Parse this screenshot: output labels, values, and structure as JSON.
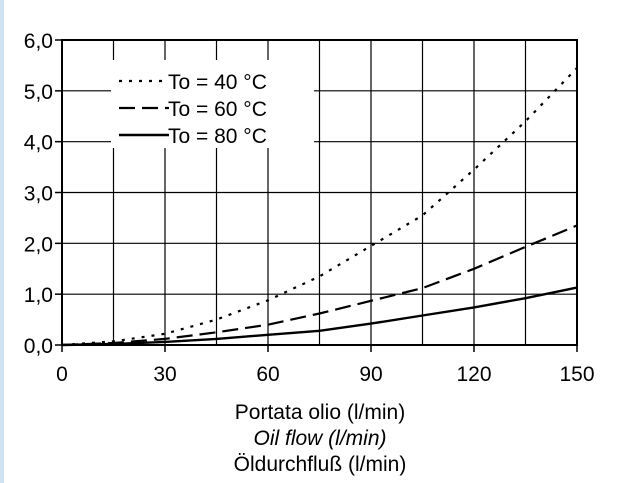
{
  "chart_data": {
    "type": "line",
    "title": "",
    "xlabel_lines": [
      "Portata olio (l/min)",
      "Oil flow (l/min)",
      "Öldurchfluß  (l/min)"
    ],
    "ylabel": "",
    "xlim": [
      0,
      150
    ],
    "ylim": [
      0,
      6
    ],
    "x_ticks": [
      0,
      30,
      60,
      90,
      120,
      150
    ],
    "x_tick_labels": [
      "0",
      "30",
      "60",
      "90",
      "120",
      "150"
    ],
    "y_ticks": [
      0,
      1,
      2,
      3,
      4,
      5,
      6
    ],
    "y_tick_labels": [
      "0,0",
      "1,0",
      "2,0",
      "3,0",
      "4,0",
      "5,0",
      "6,0"
    ],
    "x_minor_grid": [
      15,
      45,
      75,
      105,
      135
    ],
    "grid": true,
    "legend_position": "top-left",
    "series": [
      {
        "name": "To = 40 °C",
        "style": "dotted",
        "x": [
          0,
          15,
          30,
          45,
          60,
          75,
          90,
          105,
          120,
          135,
          150
        ],
        "y": [
          0,
          0.07,
          0.22,
          0.5,
          0.88,
          1.35,
          1.95,
          2.55,
          3.45,
          4.4,
          5.45
        ]
      },
      {
        "name": "To = 60 °C",
        "style": "dashed",
        "x": [
          0,
          15,
          30,
          45,
          60,
          75,
          90,
          105,
          120,
          135,
          150
        ],
        "y": [
          0,
          0.04,
          0.12,
          0.25,
          0.4,
          0.62,
          0.87,
          1.12,
          1.5,
          1.93,
          2.35
        ]
      },
      {
        "name": "To = 80 °C",
        "style": "solid",
        "x": [
          0,
          15,
          30,
          45,
          60,
          75,
          90,
          105,
          120,
          135,
          150
        ],
        "y": [
          0,
          0.02,
          0.06,
          0.12,
          0.2,
          0.28,
          0.42,
          0.58,
          0.74,
          0.92,
          1.13
        ]
      }
    ]
  }
}
